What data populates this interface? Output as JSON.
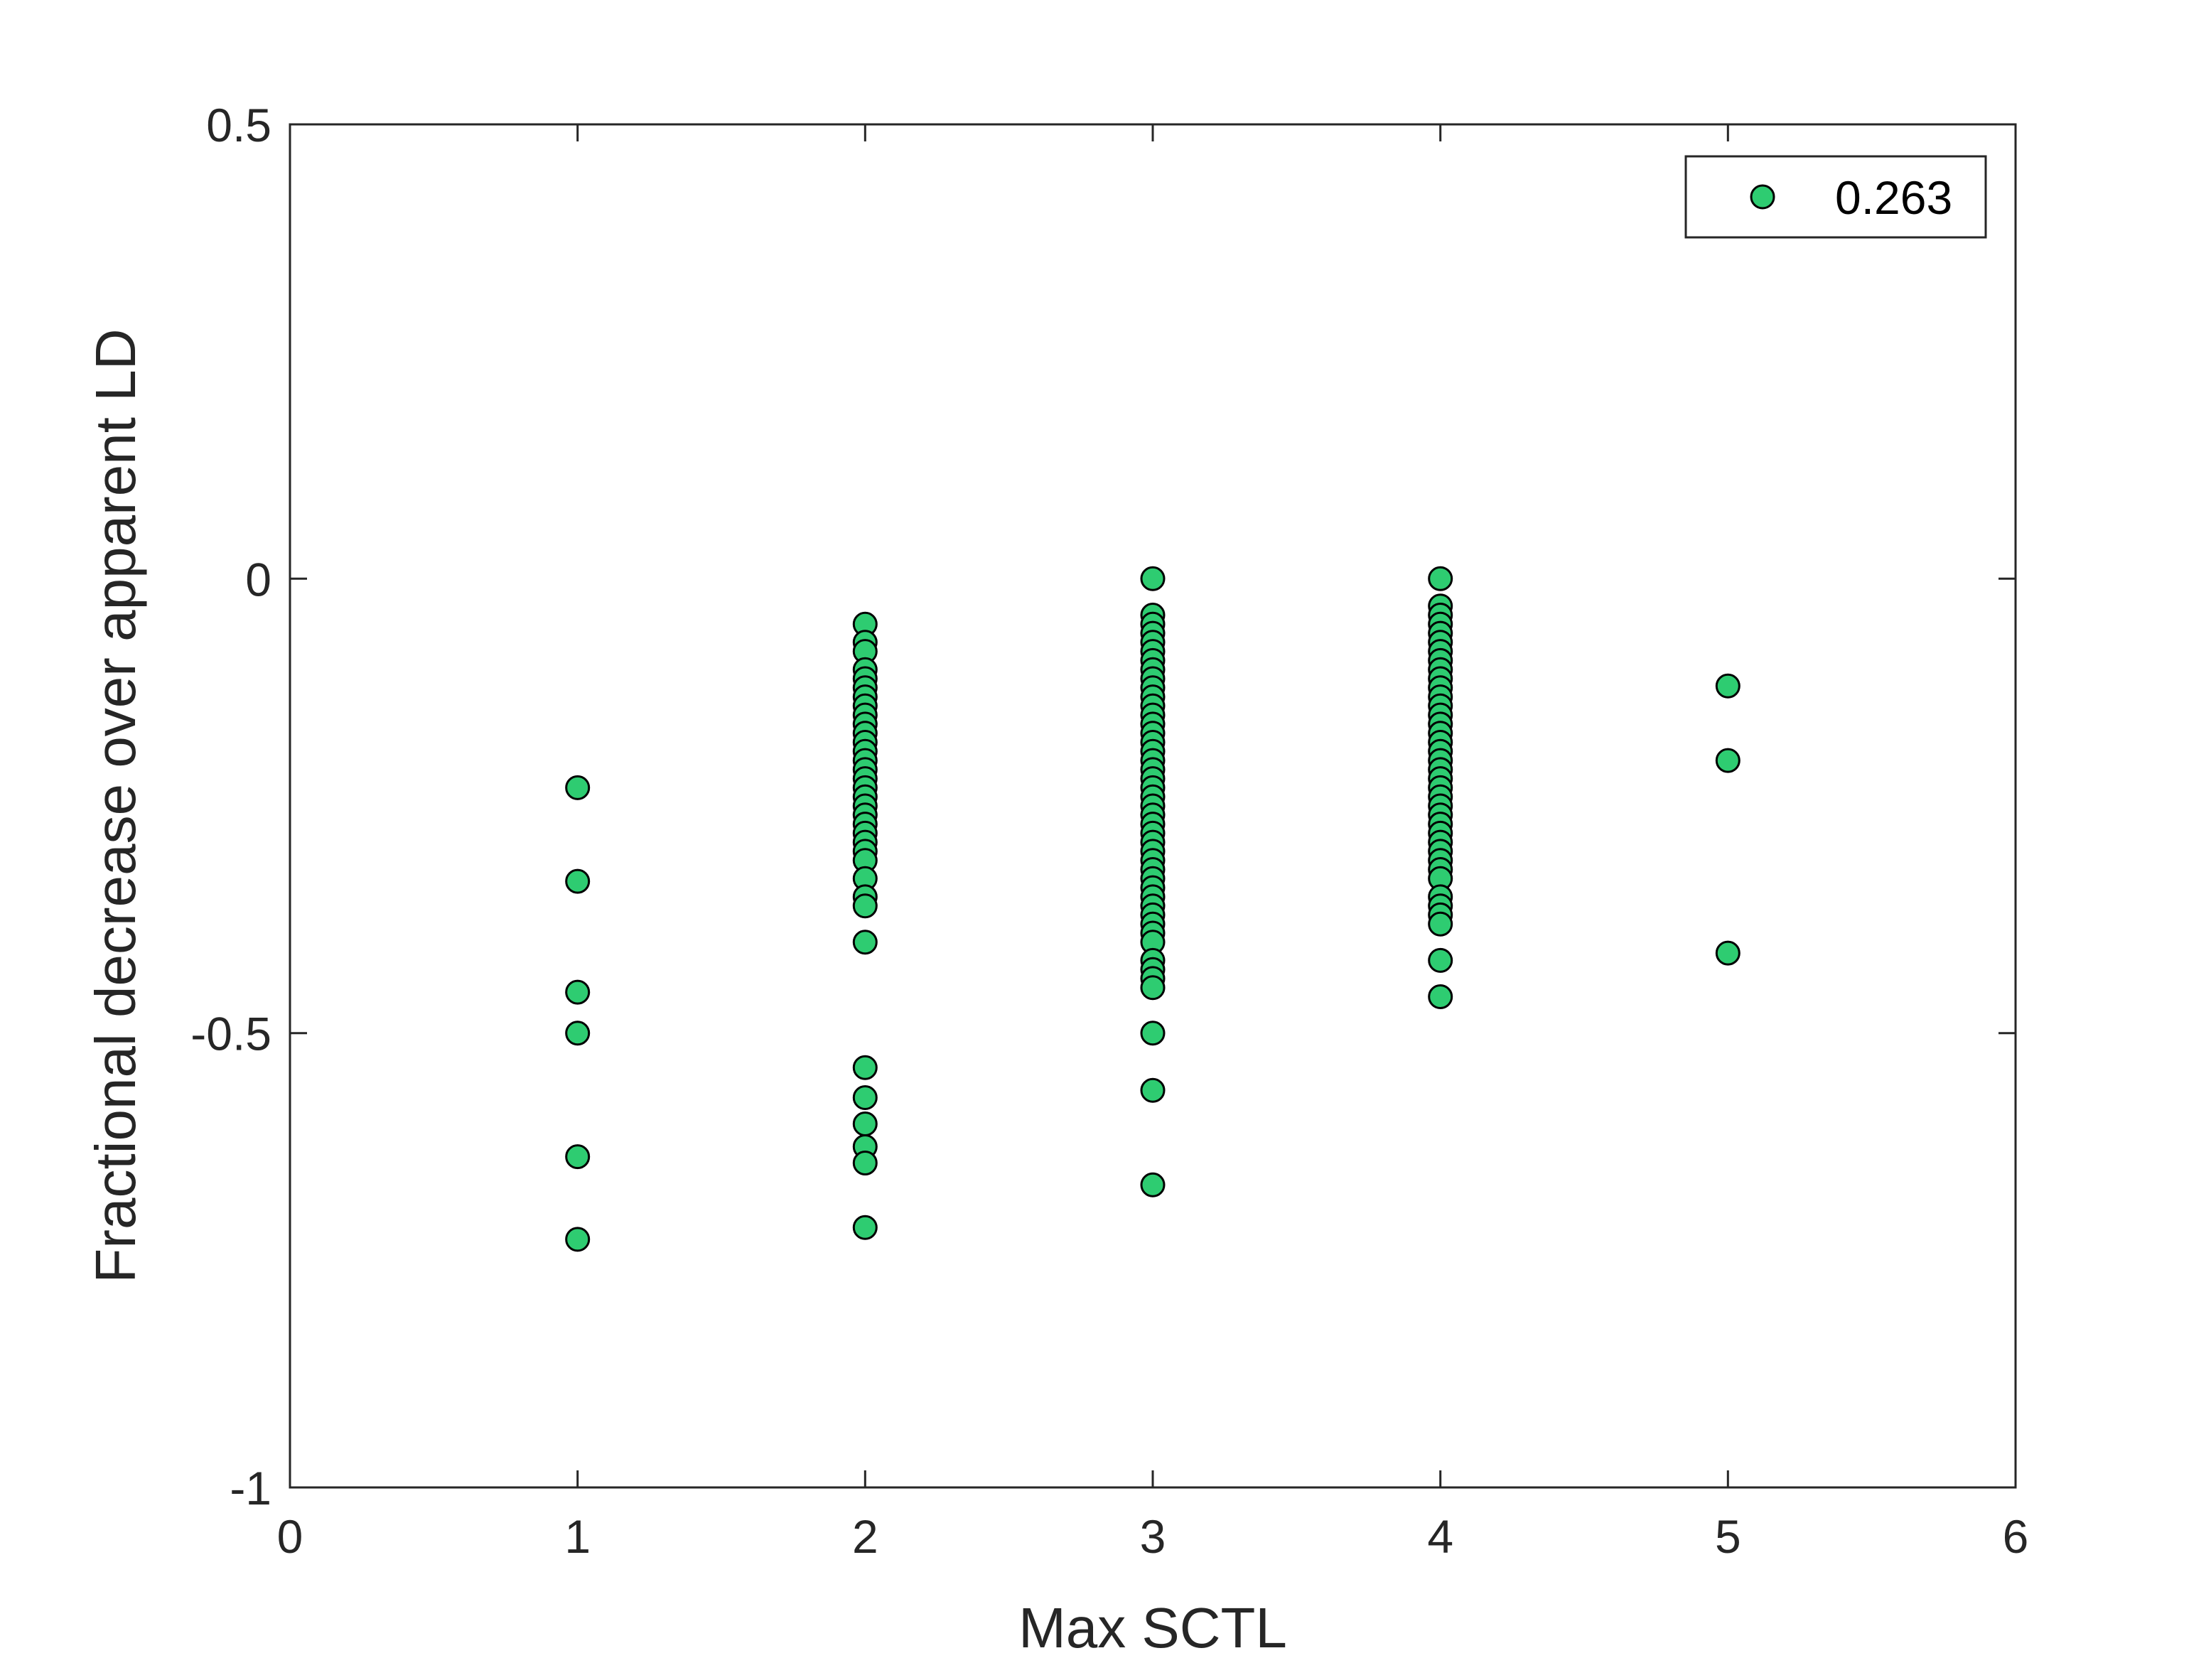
{
  "chart_data": {
    "type": "scatter",
    "title": "",
    "xlabel": "Max SCTL",
    "ylabel": "Fractional decrease over apparent LD",
    "xlim": [
      0,
      6
    ],
    "ylim": [
      -1,
      0.5
    ],
    "xticks": [
      "0",
      "1",
      "2",
      "3",
      "4",
      "5",
      "6"
    ],
    "yticks": [
      "-1",
      "-0.5",
      "0",
      "0.5"
    ],
    "grid": false,
    "legend_position": "top-right",
    "marker_color": "#2ecc71",
    "marker_edge_color": "#000000",
    "series": [
      {
        "name": "0.263",
        "points": [
          [
            1,
            -0.23
          ],
          [
            1,
            -0.333
          ],
          [
            1,
            -0.455
          ],
          [
            1,
            -0.5
          ],
          [
            1,
            -0.636
          ],
          [
            1,
            -0.727
          ],
          [
            2,
            -0.05
          ],
          [
            2,
            -0.07
          ],
          [
            2,
            -0.08
          ],
          [
            2,
            -0.1
          ],
          [
            2,
            -0.11
          ],
          [
            2,
            -0.12
          ],
          [
            2,
            -0.13
          ],
          [
            2,
            -0.14
          ],
          [
            2,
            -0.15
          ],
          [
            2,
            -0.16
          ],
          [
            2,
            -0.17
          ],
          [
            2,
            -0.18
          ],
          [
            2,
            -0.19
          ],
          [
            2,
            -0.2
          ],
          [
            2,
            -0.21
          ],
          [
            2,
            -0.22
          ],
          [
            2,
            -0.23
          ],
          [
            2,
            -0.24
          ],
          [
            2,
            -0.25
          ],
          [
            2,
            -0.26
          ],
          [
            2,
            -0.27
          ],
          [
            2,
            -0.28
          ],
          [
            2,
            -0.29
          ],
          [
            2,
            -0.3
          ],
          [
            2,
            -0.31
          ],
          [
            2,
            -0.33
          ],
          [
            2,
            -0.35
          ],
          [
            2,
            -0.36
          ],
          [
            2,
            -0.4
          ],
          [
            2,
            -0.538
          ],
          [
            2,
            -0.571
          ],
          [
            2,
            -0.6
          ],
          [
            2,
            -0.625
          ],
          [
            2,
            -0.643
          ],
          [
            2,
            -0.714
          ],
          [
            3,
            0.0
          ],
          [
            3,
            -0.04
          ],
          [
            3,
            -0.05
          ],
          [
            3,
            -0.06
          ],
          [
            3,
            -0.07
          ],
          [
            3,
            -0.08
          ],
          [
            3,
            -0.09
          ],
          [
            3,
            -0.1
          ],
          [
            3,
            -0.11
          ],
          [
            3,
            -0.12
          ],
          [
            3,
            -0.13
          ],
          [
            3,
            -0.14
          ],
          [
            3,
            -0.15
          ],
          [
            3,
            -0.16
          ],
          [
            3,
            -0.17
          ],
          [
            3,
            -0.18
          ],
          [
            3,
            -0.19
          ],
          [
            3,
            -0.2
          ],
          [
            3,
            -0.21
          ],
          [
            3,
            -0.22
          ],
          [
            3,
            -0.23
          ],
          [
            3,
            -0.24
          ],
          [
            3,
            -0.25
          ],
          [
            3,
            -0.26
          ],
          [
            3,
            -0.27
          ],
          [
            3,
            -0.28
          ],
          [
            3,
            -0.29
          ],
          [
            3,
            -0.3
          ],
          [
            3,
            -0.31
          ],
          [
            3,
            -0.32
          ],
          [
            3,
            -0.33
          ],
          [
            3,
            -0.34
          ],
          [
            3,
            -0.35
          ],
          [
            3,
            -0.36
          ],
          [
            3,
            -0.37
          ],
          [
            3,
            -0.38
          ],
          [
            3,
            -0.39
          ],
          [
            3,
            -0.4
          ],
          [
            3,
            -0.42
          ],
          [
            3,
            -0.43
          ],
          [
            3,
            -0.44
          ],
          [
            3,
            -0.45
          ],
          [
            3,
            -0.5
          ],
          [
            3,
            -0.563
          ],
          [
            3,
            -0.667
          ],
          [
            4,
            0.0
          ],
          [
            4,
            -0.03
          ],
          [
            4,
            -0.04
          ],
          [
            4,
            -0.05
          ],
          [
            4,
            -0.06
          ],
          [
            4,
            -0.07
          ],
          [
            4,
            -0.08
          ],
          [
            4,
            -0.09
          ],
          [
            4,
            -0.1
          ],
          [
            4,
            -0.11
          ],
          [
            4,
            -0.12
          ],
          [
            4,
            -0.13
          ],
          [
            4,
            -0.14
          ],
          [
            4,
            -0.15
          ],
          [
            4,
            -0.16
          ],
          [
            4,
            -0.17
          ],
          [
            4,
            -0.18
          ],
          [
            4,
            -0.19
          ],
          [
            4,
            -0.2
          ],
          [
            4,
            -0.21
          ],
          [
            4,
            -0.22
          ],
          [
            4,
            -0.23
          ],
          [
            4,
            -0.24
          ],
          [
            4,
            -0.25
          ],
          [
            4,
            -0.26
          ],
          [
            4,
            -0.27
          ],
          [
            4,
            -0.28
          ],
          [
            4,
            -0.29
          ],
          [
            4,
            -0.3
          ],
          [
            4,
            -0.31
          ],
          [
            4,
            -0.32
          ],
          [
            4,
            -0.33
          ],
          [
            4,
            -0.35
          ],
          [
            4,
            -0.36
          ],
          [
            4,
            -0.37
          ],
          [
            4,
            -0.38
          ],
          [
            4,
            -0.42
          ],
          [
            4,
            -0.46
          ],
          [
            5,
            -0.118
          ],
          [
            5,
            -0.2
          ],
          [
            5,
            -0.412
          ]
        ]
      }
    ]
  }
}
